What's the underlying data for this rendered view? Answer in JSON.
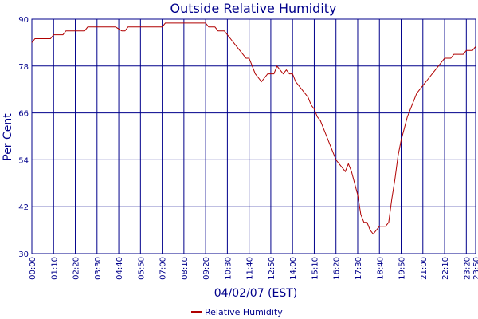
{
  "chart_data": {
    "type": "line",
    "title": "Outside Relative Humidity",
    "xlabel": "04/02/07 (EST)",
    "ylabel": "Per Cent",
    "x_ticks": [
      "00:00",
      "01:10",
      "02:20",
      "03:30",
      "04:40",
      "05:50",
      "07:00",
      "08:10",
      "09:20",
      "10:30",
      "11:40",
      "12:50",
      "14:00",
      "15:10",
      "16:20",
      "17:30",
      "18:40",
      "19:50",
      "21:00",
      "22:10",
      "23:20",
      "23:50"
    ],
    "y_ticks": [
      30,
      42,
      54,
      66,
      78,
      90
    ],
    "ylim": [
      30,
      90
    ],
    "grid": true,
    "legend": "bottom-center",
    "colors": {
      "series": "#b00000",
      "grid": "#00008b",
      "axis": "#00008b",
      "text": "#00008b"
    },
    "series": [
      {
        "name": "Relative Humidity",
        "points": [
          [
            "00:00",
            84
          ],
          [
            "00:10",
            85
          ],
          [
            "00:40",
            85
          ],
          [
            "01:00",
            85
          ],
          [
            "01:10",
            86
          ],
          [
            "01:40",
            86
          ],
          [
            "01:50",
            87
          ],
          [
            "02:30",
            87
          ],
          [
            "02:50",
            87
          ],
          [
            "03:00",
            88
          ],
          [
            "03:30",
            88
          ],
          [
            "04:30",
            88
          ],
          [
            "04:40",
            87.5
          ],
          [
            "04:50",
            87
          ],
          [
            "05:00",
            87
          ],
          [
            "05:10",
            88
          ],
          [
            "06:00",
            88
          ],
          [
            "06:50",
            88
          ],
          [
            "07:00",
            88
          ],
          [
            "07:10",
            89
          ],
          [
            "08:00",
            89
          ],
          [
            "08:40",
            89
          ],
          [
            "09:20",
            89
          ],
          [
            "09:30",
            88
          ],
          [
            "09:50",
            88
          ],
          [
            "10:00",
            87
          ],
          [
            "10:20",
            87
          ],
          [
            "10:30",
            86
          ],
          [
            "10:40",
            85
          ],
          [
            "10:50",
            84
          ],
          [
            "11:00",
            83
          ],
          [
            "11:10",
            82
          ],
          [
            "11:20",
            81
          ],
          [
            "11:30",
            80
          ],
          [
            "11:40",
            80
          ],
          [
            "11:50",
            78
          ],
          [
            "12:00",
            76
          ],
          [
            "12:10",
            75
          ],
          [
            "12:20",
            74
          ],
          [
            "12:30",
            75
          ],
          [
            "12:40",
            76
          ],
          [
            "12:50",
            76
          ],
          [
            "13:00",
            76
          ],
          [
            "13:10",
            78
          ],
          [
            "13:20",
            77
          ],
          [
            "13:30",
            76
          ],
          [
            "13:40",
            77
          ],
          [
            "13:50",
            76
          ],
          [
            "14:00",
            76
          ],
          [
            "14:10",
            74
          ],
          [
            "14:20",
            73
          ],
          [
            "14:30",
            72
          ],
          [
            "14:40",
            71
          ],
          [
            "14:50",
            70
          ],
          [
            "15:00",
            68
          ],
          [
            "15:10",
            67
          ],
          [
            "15:20",
            65
          ],
          [
            "15:30",
            64
          ],
          [
            "15:40",
            62
          ],
          [
            "15:50",
            60
          ],
          [
            "16:00",
            58
          ],
          [
            "16:10",
            56
          ],
          [
            "16:20",
            54
          ],
          [
            "16:30",
            53
          ],
          [
            "16:40",
            52
          ],
          [
            "16:50",
            51
          ],
          [
            "17:00",
            53
          ],
          [
            "17:10",
            51
          ],
          [
            "17:20",
            48
          ],
          [
            "17:30",
            45
          ],
          [
            "17:40",
            40
          ],
          [
            "17:50",
            38
          ],
          [
            "18:00",
            38
          ],
          [
            "18:10",
            36
          ],
          [
            "18:20",
            35
          ],
          [
            "18:30",
            36
          ],
          [
            "18:40",
            37
          ],
          [
            "18:50",
            37
          ],
          [
            "19:00",
            37
          ],
          [
            "19:10",
            38
          ],
          [
            "19:20",
            44
          ],
          [
            "19:30",
            49
          ],
          [
            "19:40",
            55
          ],
          [
            "19:50",
            59
          ],
          [
            "20:00",
            62
          ],
          [
            "20:10",
            65
          ],
          [
            "20:20",
            67
          ],
          [
            "20:30",
            69
          ],
          [
            "20:40",
            71
          ],
          [
            "20:50",
            72
          ],
          [
            "21:00",
            73
          ],
          [
            "21:10",
            74
          ],
          [
            "21:20",
            75
          ],
          [
            "21:30",
            76
          ],
          [
            "21:40",
            77
          ],
          [
            "21:50",
            78
          ],
          [
            "22:00",
            79
          ],
          [
            "22:10",
            80
          ],
          [
            "22:20",
            80
          ],
          [
            "22:30",
            80
          ],
          [
            "22:40",
            81
          ],
          [
            "23:00",
            81
          ],
          [
            "23:10",
            81
          ],
          [
            "23:20",
            82
          ],
          [
            "23:40",
            82
          ],
          [
            "23:50",
            83
          ]
        ]
      }
    ]
  }
}
